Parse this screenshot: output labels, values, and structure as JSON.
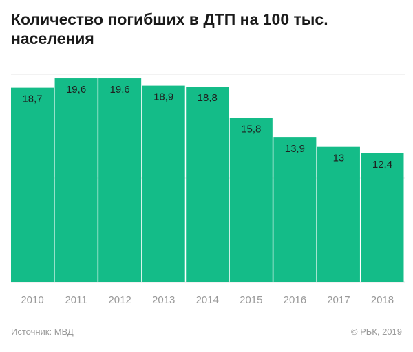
{
  "colors": {
    "bar": "#14bc88",
    "grid": "#e4e4e4",
    "bar_label": "#1f1f1f",
    "tick_label": "#9a9a9a"
  },
  "chart_data": {
    "type": "bar",
    "title": "Количество погибших в ДТП на 100 тыс. населения",
    "categories": [
      "2010",
      "2011",
      "2012",
      "2013",
      "2014",
      "2015",
      "2016",
      "2017",
      "2018"
    ],
    "values": [
      18.7,
      19.6,
      19.6,
      18.9,
      18.8,
      15.8,
      13.9,
      13,
      12.4
    ],
    "data_labels": [
      "18,7",
      "19,6",
      "19,6",
      "18,9",
      "18,8",
      "15,8",
      "13,9",
      "13",
      "12,4"
    ],
    "xlabel": "",
    "ylabel": "",
    "ylim": [
      0,
      20
    ],
    "grid": true,
    "legend": "none"
  },
  "footer": {
    "source": "Источник: МВД",
    "copyright": "© РБК, 2019"
  }
}
